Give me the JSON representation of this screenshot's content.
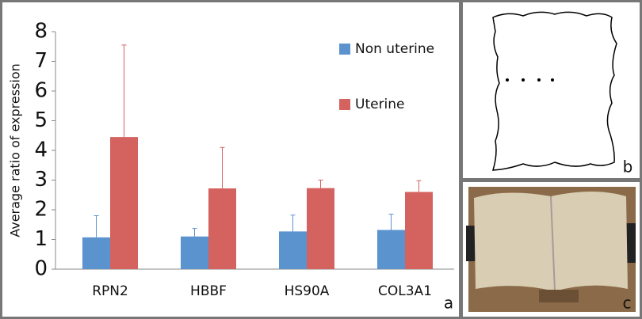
{
  "chart_data": {
    "type": "bar",
    "ylabel": "Average ratio of expression",
    "categories": [
      "RPN2",
      "HBBF",
      "HS90A",
      "COL3A1"
    ],
    "series": [
      {
        "name": "Non uterine",
        "color": "#5b93cf",
        "values": [
          1.07,
          1.1,
          1.27,
          1.32
        ],
        "errors": [
          0.73,
          0.27,
          0.55,
          0.53
        ]
      },
      {
        "name": "Uterine",
        "color": "#d4635f",
        "values": [
          4.45,
          2.72,
          2.73,
          2.6
        ],
        "errors": [
          3.1,
          1.38,
          0.27,
          0.38
        ]
      }
    ],
    "ylim": [
      0,
      8
    ],
    "yticks": [
      0,
      1,
      2,
      3,
      4,
      5,
      6,
      7,
      8
    ],
    "grid": false
  },
  "panel_labels": [
    "a",
    "b",
    "c"
  ]
}
